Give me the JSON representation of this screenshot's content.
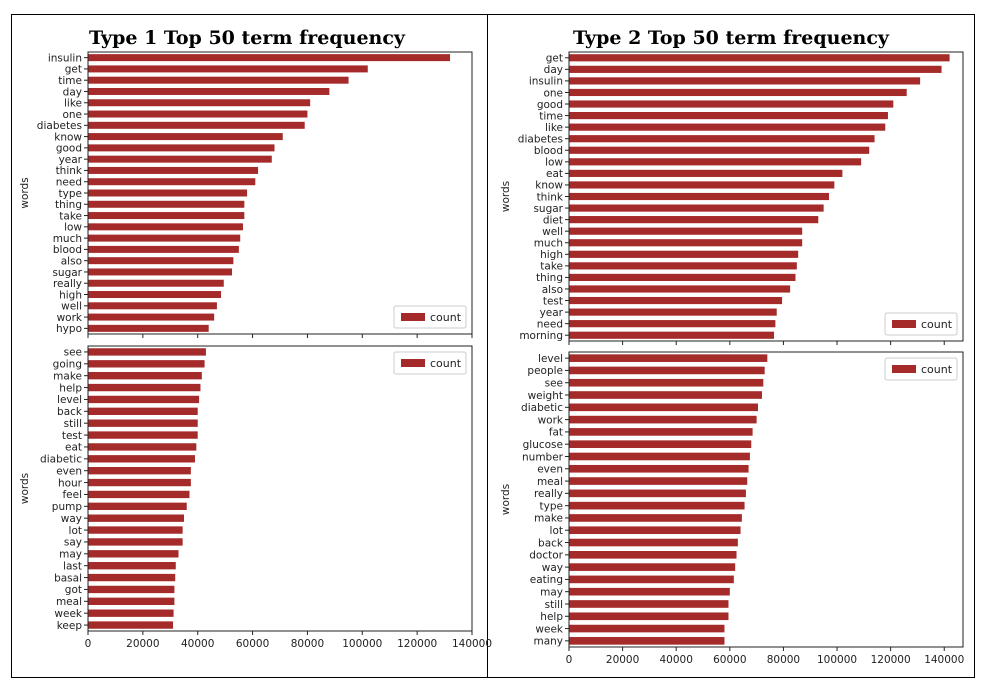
{
  "chart_data": [
    {
      "type": "bar",
      "orientation": "horizontal",
      "title": "Type 1 Top 50 term frequency",
      "ylabel": "words",
      "legend": "count",
      "legend_position": "bottom-right",
      "xlim": [
        0,
        140000
      ],
      "xticks": [],
      "color": "#a52a2a",
      "categories": [
        "insulin",
        "get",
        "time",
        "day",
        "like",
        "one",
        "diabetes",
        "know",
        "good",
        "year",
        "think",
        "need",
        "type",
        "thing",
        "take",
        "low",
        "much",
        "blood",
        "also",
        "sugar",
        "really",
        "high",
        "well",
        "work",
        "hypo"
      ],
      "values": [
        132000,
        102000,
        95000,
        88000,
        81000,
        80000,
        79000,
        71000,
        68000,
        67000,
        62000,
        61000,
        58000,
        57000,
        57000,
        56500,
        55500,
        55000,
        53000,
        52500,
        49500,
        48500,
        47000,
        46000,
        44000
      ]
    },
    {
      "type": "bar",
      "orientation": "horizontal",
      "title": "",
      "ylabel": "words",
      "legend": "count",
      "legend_position": "top-right",
      "xlim": [
        0,
        140000
      ],
      "xticks": [
        "0",
        "20000",
        "40000",
        "60000",
        "80000",
        "100000",
        "120000",
        "140000"
      ],
      "color": "#a52a2a",
      "categories": [
        "see",
        "going",
        "make",
        "help",
        "level",
        "back",
        "still",
        "test",
        "eat",
        "diabetic",
        "even",
        "hour",
        "feel",
        "pump",
        "way",
        "lot",
        "say",
        "may",
        "last",
        "basal",
        "got",
        "meal",
        "week",
        "keep"
      ],
      "values": [
        43000,
        42500,
        41500,
        41000,
        40500,
        40000,
        40000,
        40000,
        39500,
        39000,
        37500,
        37500,
        37000,
        36000,
        35000,
        34500,
        34500,
        33000,
        32000,
        31800,
        31500,
        31500,
        31200,
        31000
      ]
    },
    {
      "type": "bar",
      "orientation": "horizontal",
      "title": "Type 2 Top 50 term frequency",
      "ylabel": "words",
      "legend": "count",
      "legend_position": "bottom-right",
      "xlim": [
        0,
        147000
      ],
      "xticks": [],
      "color": "#a52a2a",
      "categories": [
        "get",
        "day",
        "insulin",
        "one",
        "good",
        "time",
        "like",
        "diabetes",
        "blood",
        "low",
        "eat",
        "know",
        "think",
        "sugar",
        "diet",
        "well",
        "much",
        "high",
        "take",
        "thing",
        "also",
        "test",
        "year",
        "need",
        "morning"
      ],
      "values": [
        142000,
        139000,
        131000,
        126000,
        121000,
        119000,
        118000,
        114000,
        112000,
        109000,
        102000,
        99000,
        97000,
        95000,
        93000,
        87000,
        87000,
        85500,
        85000,
        84500,
        82500,
        79500,
        77500,
        77000,
        76500
      ]
    },
    {
      "type": "bar",
      "orientation": "horizontal",
      "title": "",
      "ylabel": "words",
      "legend": "count",
      "legend_position": "top-right",
      "xlim": [
        0,
        147000
      ],
      "xticks": [
        "0",
        "20000",
        "40000",
        "60000",
        "80000",
        "100000",
        "120000",
        "140000"
      ],
      "color": "#a52a2a",
      "categories": [
        "level",
        "people",
        "see",
        "weight",
        "diabetic",
        "work",
        "fat",
        "glucose",
        "number",
        "even",
        "meal",
        "really",
        "type",
        "make",
        "lot",
        "back",
        "doctor",
        "way",
        "eating",
        "may",
        "still",
        "help",
        "week",
        "many"
      ],
      "values": [
        74000,
        73000,
        72500,
        72000,
        70500,
        70000,
        68500,
        68000,
        67500,
        67000,
        66500,
        66000,
        65500,
        64500,
        64000,
        63000,
        62500,
        62000,
        61500,
        60000,
        59500,
        59500,
        58000,
        58000
      ]
    }
  ]
}
